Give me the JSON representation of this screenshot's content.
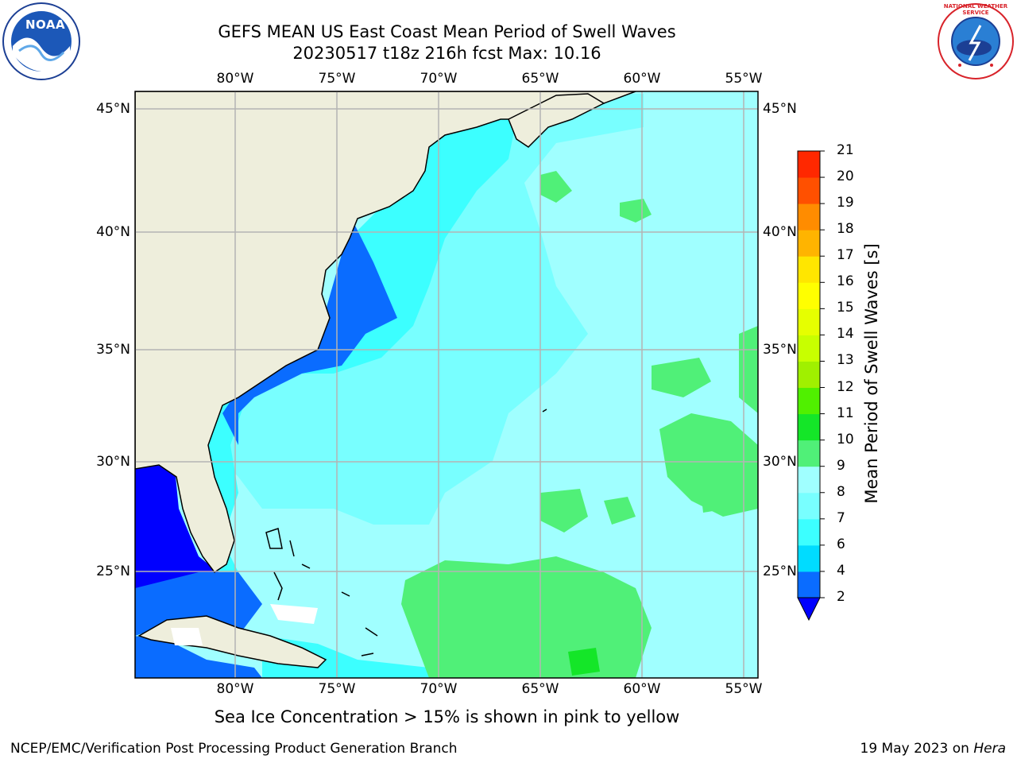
{
  "title": {
    "line1": "GEFS MEAN US East Coast Mean Period of Swell Waves",
    "line2": "20230517 t18z 216h fcst   Max: 10.16"
  },
  "map": {
    "lon_labels": [
      "80°W",
      "75°W",
      "70°W",
      "65°W",
      "60°W",
      "55°W"
    ],
    "lat_labels": [
      "45°N",
      "40°N",
      "35°N",
      "30°N",
      "25°N"
    ]
  },
  "colorbar": {
    "title": "Mean Period of Swell Waves [s]",
    "ticks": [
      "2",
      "4",
      "6",
      "7",
      "8",
      "9",
      "10",
      "11",
      "12",
      "13",
      "14",
      "15",
      "16",
      "17",
      "18",
      "19",
      "20",
      "21"
    ],
    "colors": [
      "#0a6cff",
      "#00dcff",
      "#3cffff",
      "#78ffff",
      "#a0ffff",
      "#50f078",
      "#14e628",
      "#50f000",
      "#a0f000",
      "#c8ff00",
      "#e6ff00",
      "#ffff00",
      "#ffe600",
      "#ffb400",
      "#ff8c00",
      "#ff5000",
      "#ff2800",
      "#ff0000"
    ],
    "underflow_color": "#0000ff"
  },
  "caption": "Sea Ice Concentration > 15% is shown in pink to yellow",
  "footer": {
    "left": "NCEP/EMC/Verification Post Processing Product Generation Branch",
    "right_date": "19 May 2023 on ",
    "right_host": "Hera"
  },
  "logos": {
    "noaa": "NOAA",
    "nws": "NATIONAL WEATHER SERVICE"
  },
  "colors": {
    "land": "#eeeedc",
    "ocean_base": "#a0ffff",
    "grid": "#b4b4b4"
  }
}
